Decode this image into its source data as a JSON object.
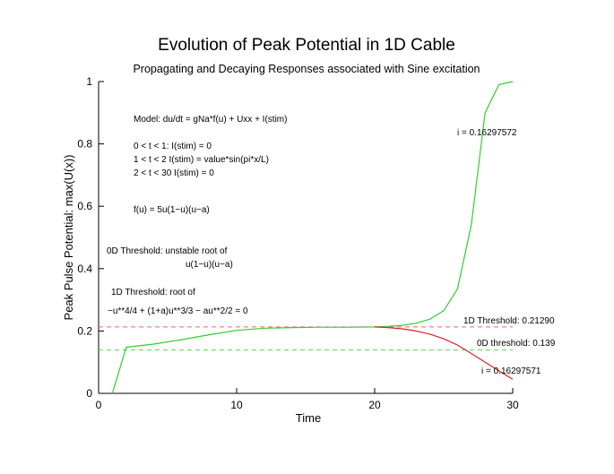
{
  "chart_data": {
    "type": "line",
    "title": "Evolution of Peak Potential in 1D Cable",
    "subtitle": "Propagating and Decaying Responses associated with Sine excitation",
    "xlabel": "Time",
    "ylabel": "Peak Pulse Potential:  max(U(x))",
    "xlim": [
      0,
      30
    ],
    "ylim": [
      0,
      1
    ],
    "xticks": [
      "0",
      "10",
      "20",
      "30"
    ],
    "yticks": [
      "0",
      "0.2",
      "0.4",
      "0.6",
      "0.8",
      "1"
    ],
    "grid": false,
    "legend": "none",
    "series": [
      {
        "name": "i = 0.16297572",
        "color": "#33cc33",
        "x": [
          1,
          2,
          4,
          6,
          8,
          10,
          12,
          14,
          16,
          18,
          20,
          21,
          22,
          23,
          24,
          25,
          26,
          27,
          28,
          29,
          30
        ],
        "y": [
          0.0,
          0.148,
          0.158,
          0.172,
          0.188,
          0.202,
          0.209,
          0.211,
          0.212,
          0.212,
          0.213,
          0.215,
          0.218,
          0.225,
          0.238,
          0.265,
          0.335,
          0.54,
          0.9,
          0.99,
          1.0
        ]
      },
      {
        "name": "i = 0.16297571",
        "color": "#dd2222",
        "x": [
          20,
          21,
          22,
          23,
          24,
          25,
          26,
          27,
          28,
          29,
          30
        ],
        "y": [
          0.213,
          0.211,
          0.207,
          0.2,
          0.19,
          0.175,
          0.155,
          0.128,
          0.1,
          0.072,
          0.045
        ]
      }
    ],
    "reference_lines": [
      {
        "label": "1D Threshold:  0.21290",
        "y": 0.2129,
        "color": "#ee6666"
      },
      {
        "label": "0D threshold:  0.139",
        "y": 0.139,
        "color": "#66cc66"
      }
    ],
    "annotations": {
      "model": "Model: du/dt = gNa*f(u) + Uxx + I(stim)",
      "stim1": "0 < t < 1: I(stim) = 0",
      "stim2": "1 < t < 2  I(stim) = value*sin(pi*x/L)",
      "stim3": "2 < t < 30  I(stim) = 0",
      "fu": "f(u) = 5u(1−u)(u−a)",
      "thr0_line1": "0D Threshold: unstable root of",
      "thr0_line2": "u(1−u)(u−a)",
      "thr1_line1": "1D Threshold: root of",
      "thr1_line2": "−u**4/4 + (1+a)u**3/3 − au**2/2 = 0"
    }
  }
}
